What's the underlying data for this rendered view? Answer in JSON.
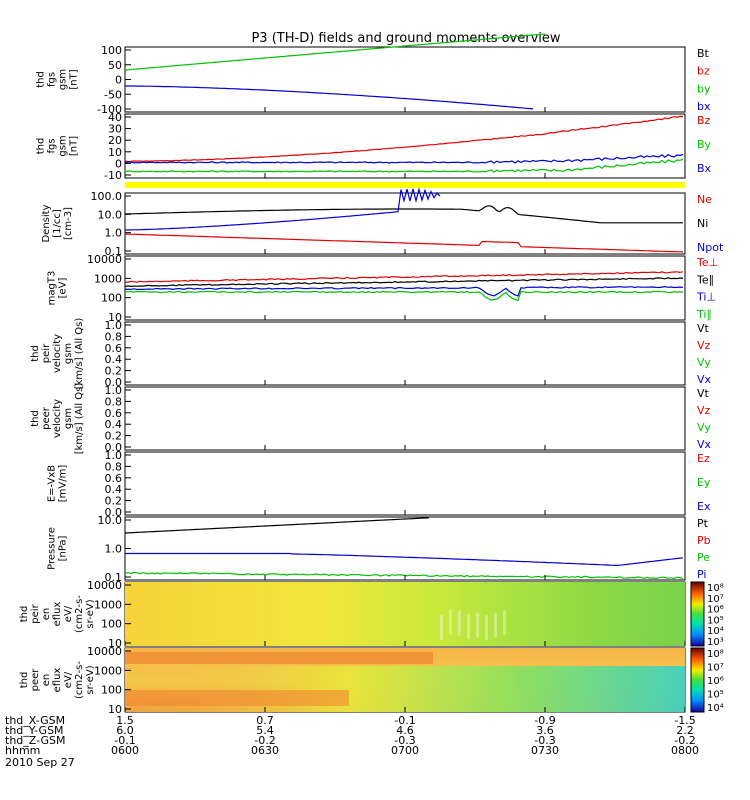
{
  "chart_data": {
    "type": "line",
    "title": "P3 (TH-D) fields and ground moments overview",
    "colors": {
      "black": "#000000",
      "red": "#e00000",
      "green": "#00c000",
      "blue": "#0000d0",
      "yellow": "#ffff00"
    },
    "time_axis": {
      "ticks": [
        "0600",
        "0630",
        "0700",
        "0730",
        "0800"
      ],
      "rows": [
        {
          "label": "thd_X-GSM",
          "values": [
            "1.5",
            "0.7",
            "-0.1",
            "-0.9",
            "-1.5"
          ]
        },
        {
          "label": "thd_Y-GSM",
          "values": [
            "6.0",
            "5.4",
            "4.6",
            "3.6",
            "2.2"
          ]
        },
        {
          "label": "thd_Z-GSM",
          "values": [
            "-0.1",
            "-0.2",
            "-0.3",
            "-0.3",
            "-0.2"
          ]
        },
        {
          "label": "hhmm",
          "values": [
            "0600",
            "0630",
            "0700",
            "0730",
            "0800"
          ]
        }
      ],
      "date": "2010 Sep 27"
    },
    "panels": [
      {
        "id": "fgs_gsm",
        "ylabel": [
          "thd",
          "fgs",
          "gsm",
          "[nT]"
        ],
        "ticks": [
          "100",
          "50",
          "0",
          "-50",
          "-100"
        ],
        "ylim": [
          -100,
          100
        ],
        "legend": [
          {
            "name": "Bt",
            "color": "black"
          },
          {
            "name": "bz",
            "color": "red"
          },
          {
            "name": "by",
            "color": "green"
          },
          {
            "name": "bx",
            "color": "blue"
          }
        ]
      },
      {
        "id": "fgs_dsl",
        "ylabel": [
          "thd",
          "fgs",
          "gsm",
          "[nT]"
        ],
        "ticks": [
          "40",
          "30",
          "20",
          "10",
          "0",
          "-10"
        ],
        "ylim": [
          -15,
          40
        ],
        "legend": [
          {
            "name": "Bz",
            "color": "red"
          },
          {
            "name": "By",
            "color": "green"
          },
          {
            "name": "Bx",
            "color": "blue"
          }
        ]
      },
      {
        "id": "density",
        "ylabel": [
          "Density",
          "[1/cc]",
          "[cm-3]"
        ],
        "ticks": [
          "100.0",
          "10.0",
          "1.0",
          "0.1"
        ],
        "log": true,
        "ylim": [
          0.1,
          100
        ],
        "legend": [
          {
            "name": "Ne",
            "color": "red"
          },
          {
            "name": "Ni",
            "color": "black"
          },
          {
            "name": "Npot",
            "color": "blue"
          }
        ]
      },
      {
        "id": "temperature",
        "ylabel": [
          "magT3",
          "[eV]"
        ],
        "ticks": [
          "10000",
          "1000",
          "100",
          "10"
        ],
        "log": true,
        "ylim": [
          10,
          10000
        ],
        "legend": [
          {
            "name": "Te⊥",
            "color": "red"
          },
          {
            "name": "Te∥",
            "color": "black"
          },
          {
            "name": "Ti⊥",
            "color": "blue"
          },
          {
            "name": "Ti∥",
            "color": "green"
          }
        ]
      },
      {
        "id": "peir_velocity",
        "ylabel": [
          "thd",
          "peir",
          "velocity",
          "gsm",
          "[km/s] (All Qs)"
        ],
        "ticks": [
          "1.0",
          "0.8",
          "0.6",
          "0.4",
          "0.2",
          "0.0"
        ],
        "ylim": [
          0,
          1
        ],
        "legend": [
          {
            "name": "Vt",
            "color": "black"
          },
          {
            "name": "Vz",
            "color": "red"
          },
          {
            "name": "Vy",
            "color": "green"
          },
          {
            "name": "Vx",
            "color": "blue"
          }
        ]
      },
      {
        "id": "peer_velocity",
        "ylabel": [
          "thd",
          "peer",
          "velocity",
          "gsm",
          "[km/s] (All Qs)"
        ],
        "ticks": [
          "1.0",
          "0.8",
          "0.6",
          "0.4",
          "0.2",
          "0.0"
        ],
        "ylim": [
          0,
          1
        ],
        "legend": [
          {
            "name": "Vt",
            "color": "black"
          },
          {
            "name": "Vz",
            "color": "red"
          },
          {
            "name": "Vy",
            "color": "green"
          },
          {
            "name": "Vx",
            "color": "blue"
          }
        ]
      },
      {
        "id": "efield",
        "ylabel": [
          "E=-VxB",
          "[mV/m]"
        ],
        "ticks": [
          "1.0",
          "0.8",
          "0.6",
          "0.4",
          "0.2",
          "0.0"
        ],
        "ylim": [
          0,
          1
        ],
        "legend": [
          {
            "name": "Ez",
            "color": "red"
          },
          {
            "name": "Ey",
            "color": "green"
          },
          {
            "name": "Ex",
            "color": "blue"
          }
        ]
      },
      {
        "id": "pressure",
        "ylabel": [
          "Pressure",
          "[nPa]"
        ],
        "ticks": [
          "10.0",
          "1.0",
          "0.1"
        ],
        "log": true,
        "ylim": [
          0.05,
          30
        ],
        "legend": [
          {
            "name": "Pt",
            "color": "black"
          },
          {
            "name": "Pb",
            "color": "red"
          },
          {
            "name": "Pe",
            "color": "green"
          },
          {
            "name": "Pi",
            "color": "blue"
          }
        ]
      },
      {
        "id": "peir_spec",
        "ylabel": [
          "thd",
          "peir",
          "en",
          "eflux",
          "eV/",
          "(cm2-s-",
          "sr-eV)"
        ],
        "ticks": [
          "10000",
          "1000",
          "100",
          "10"
        ],
        "log": true,
        "ylim": [
          7,
          20000
        ],
        "colorbar": [
          "10⁸",
          "10⁷",
          "10⁶",
          "10⁵",
          "10⁴",
          "10³"
        ]
      },
      {
        "id": "peer_spec",
        "ylabel": [
          "thd",
          "peer",
          "en",
          "eflux",
          "eV/",
          "(cm2-s-",
          "sr-eV)"
        ],
        "ticks": [
          "10000",
          "1000",
          "100",
          "10"
        ],
        "log": true,
        "ylim": [
          5,
          20000
        ],
        "colorbar": [
          "10⁸",
          "10⁷",
          "10⁶",
          "10⁵",
          "10⁴"
        ]
      }
    ]
  }
}
